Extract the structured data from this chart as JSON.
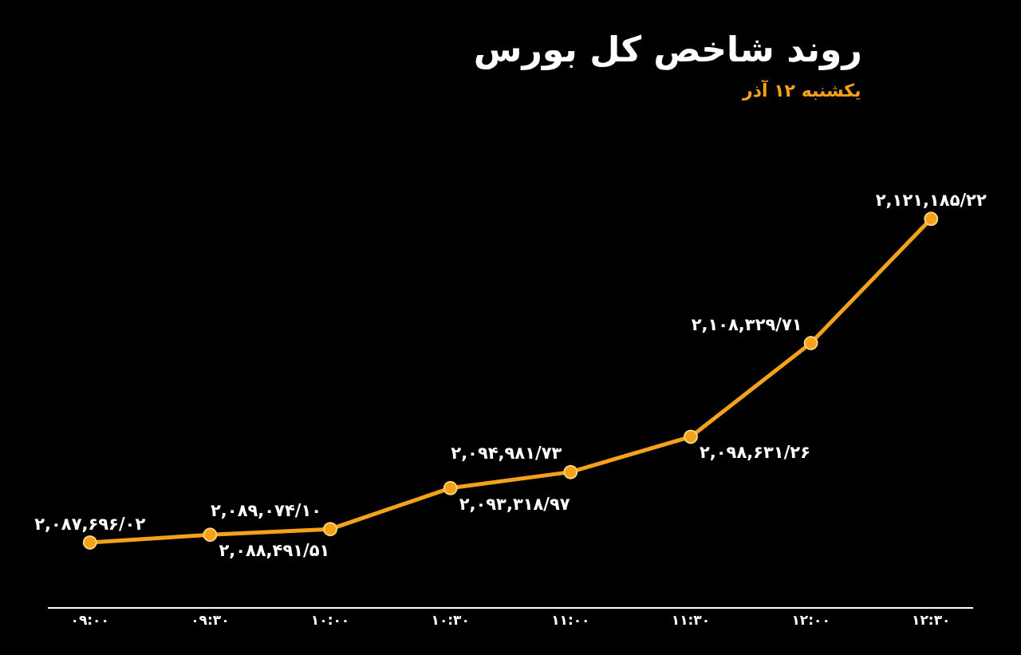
{
  "chart_data": {
    "type": "line",
    "title": "روند شاخص کل بورس",
    "subtitle": "یکشنبه ۱۲ آذر",
    "categories": [
      "۰۹:۰۰",
      "۰۹:۳۰",
      "۱۰:۰۰",
      "۱۰:۳۰",
      "۱۱:۰۰",
      "۱۱:۳۰",
      "۱۲:۰۰",
      "۱۲:۳۰"
    ],
    "series": [
      {
        "color": "#f5a21b",
        "values": [
          2087696.02,
          2088491.51,
          2089074.1,
          2093318.97,
          2094981.73,
          2098631.26,
          2108329.71,
          2121185.22
        ],
        "value_labels": [
          "۲,۰۸۷,۶۹۶/۰۲",
          "۲,۰۸۸,۴۹۱/۵۱",
          "۲,۰۸۹,۰۷۴/۱۰",
          "۲,۰۹۳,۳۱۸/۹۷",
          "۲,۰۹۴,۹۸۱/۷۳",
          "۲,۰۹۸,۶۳۱/۲۶",
          "۲,۱۰۸,۳۲۹/۷۱",
          "۲,۱۲۱,۱۸۵/۲۲"
        ]
      }
    ],
    "marker": "circle",
    "line_style": "solid",
    "grid": false,
    "tick_labels": "x"
  }
}
